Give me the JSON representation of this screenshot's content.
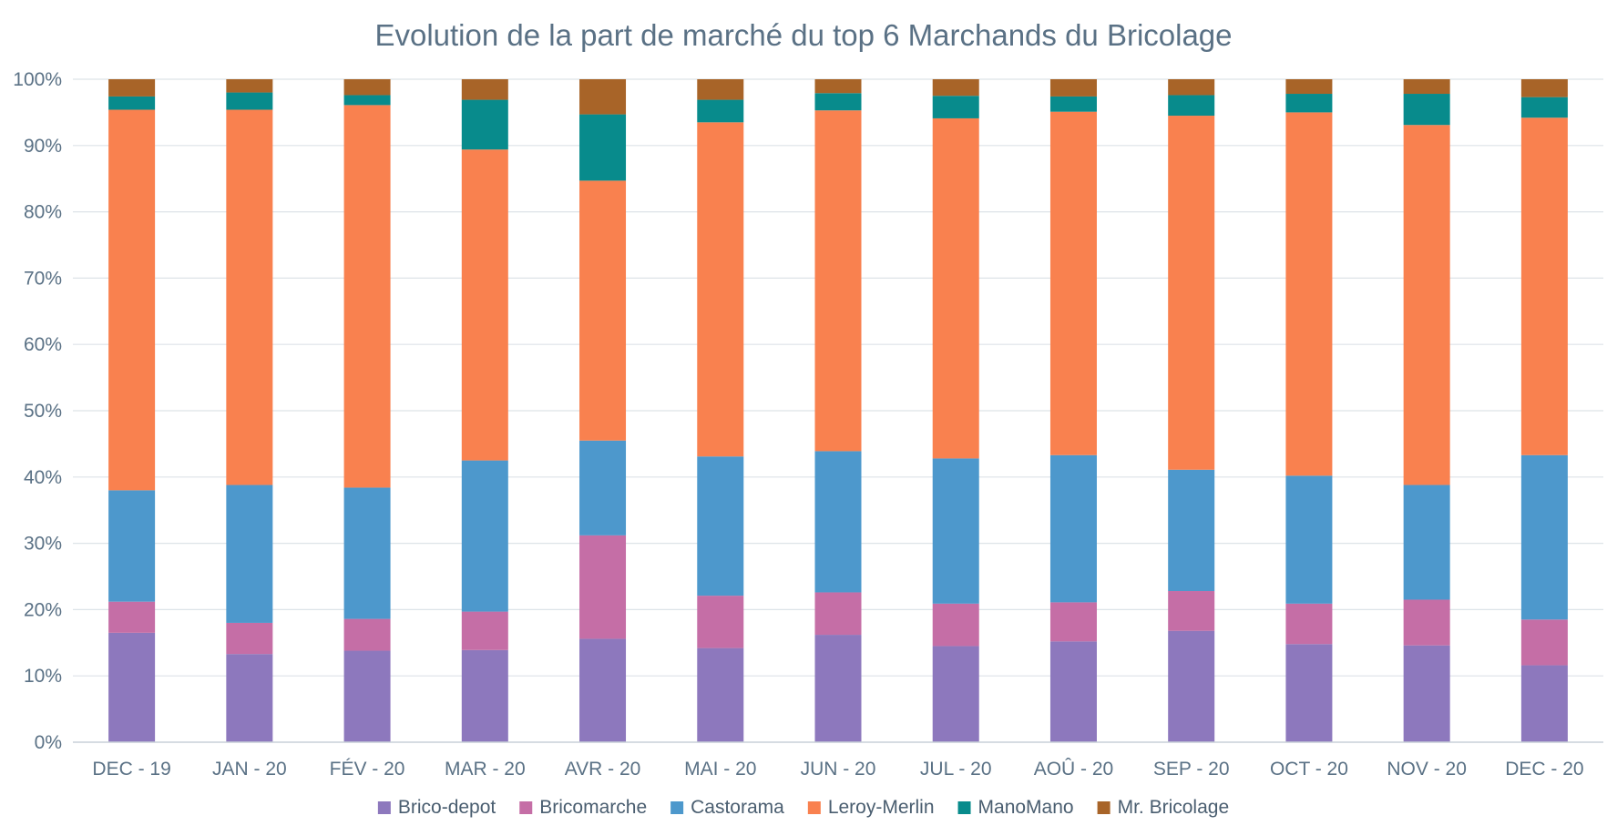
{
  "chart_data": {
    "type": "bar",
    "stacked": true,
    "title": "Evolution de la part de marché du top 6 Marchands du Bricolage",
    "xlabel": "",
    "ylabel": "",
    "ylim": [
      0,
      100
    ],
    "yticks": [
      0,
      10,
      20,
      30,
      40,
      50,
      60,
      70,
      80,
      90,
      100
    ],
    "ytick_labels": [
      "0%",
      "10%",
      "20%",
      "30%",
      "40%",
      "50%",
      "60%",
      "70%",
      "80%",
      "90%",
      "100%"
    ],
    "grid": true,
    "legend_position": "bottom",
    "categories": [
      "DEC - 19",
      "JAN - 20",
      "FÉV - 20",
      "MAR - 20",
      "AVR - 20",
      "MAI - 20",
      "JUN - 20",
      "JUL - 20",
      "AOÛ - 20",
      "SEP - 20",
      "OCT - 20",
      "NOV - 20",
      "DEC - 20"
    ],
    "series": [
      {
        "name": "Brico-depot",
        "color": "#8d78bd",
        "values": [
          16.5,
          13.3,
          13.8,
          13.9,
          15.6,
          14.2,
          16.2,
          14.5,
          15.2,
          16.8,
          14.8,
          14.6,
          11.6
        ]
      },
      {
        "name": "Bricomarche",
        "color": "#c56ea6",
        "values": [
          4.7,
          4.7,
          4.8,
          5.8,
          15.6,
          7.9,
          6.4,
          6.4,
          5.9,
          6.0,
          6.1,
          6.9,
          6.9
        ]
      },
      {
        "name": "Castorama",
        "color": "#4d98cc",
        "values": [
          16.8,
          20.8,
          19.8,
          22.8,
          14.3,
          21.0,
          21.3,
          21.9,
          22.2,
          18.3,
          19.3,
          17.3,
          24.8
        ]
      },
      {
        "name": "Leroy-Merlin",
        "color": "#f9814f",
        "values": [
          57.4,
          56.6,
          57.7,
          46.9,
          39.2,
          50.4,
          51.4,
          51.3,
          51.8,
          53.4,
          54.8,
          54.3,
          50.9
        ]
      },
      {
        "name": "ManoMano",
        "color": "#088b8c",
        "values": [
          2.0,
          2.6,
          1.5,
          7.5,
          10.0,
          3.4,
          2.6,
          3.4,
          2.3,
          3.1,
          2.8,
          4.7,
          3.1
        ]
      },
      {
        "name": "Mr. Bricolage",
        "color": "#a86428",
        "values": [
          2.6,
          2.0,
          2.4,
          3.1,
          5.3,
          3.1,
          2.1,
          2.5,
          2.6,
          2.4,
          2.2,
          2.2,
          2.7
        ]
      }
    ]
  }
}
